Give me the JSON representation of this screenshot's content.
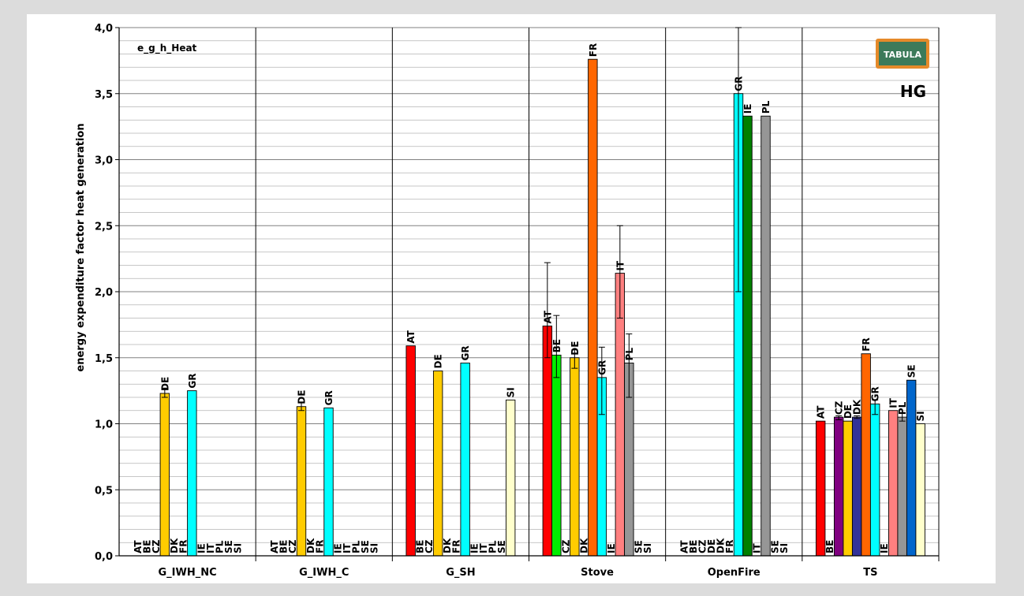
{
  "chart_data": {
    "type": "bar",
    "ylabel": "energy expenditure factor heat generation",
    "ylim": [
      0,
      4
    ],
    "yticks": [
      "0,0",
      "0,5",
      "1,0",
      "1,5",
      "2,0",
      "2,5",
      "3,0",
      "3,5",
      "4,0"
    ],
    "grid": true,
    "annotation": "e_g_h_Heat",
    "badge": "HG",
    "logo": "TABULA",
    "countries": [
      "AT",
      "BE",
      "CZ",
      "DE",
      "DK",
      "FR",
      "IE",
      "IT",
      "GR",
      "PL",
      "SE",
      "SI"
    ],
    "groups": [
      {
        "name": "G_IWH_NC",
        "bars": [
          {
            "label": "AT",
            "value": 0
          },
          {
            "label": "BE",
            "value": 0
          },
          {
            "label": "CZ",
            "value": 0
          },
          {
            "label": "DE",
            "value": 1.23,
            "err_low": 1.2,
            "err_high": 1.27
          },
          {
            "label": "DK",
            "value": 0
          },
          {
            "label": "FR",
            "value": 0
          },
          {
            "label": "GR",
            "value": 1.25
          },
          {
            "label": "IE",
            "value": 0
          },
          {
            "label": "IT",
            "value": 0
          },
          {
            "label": "PL",
            "value": 0
          },
          {
            "label": "SE",
            "value": 0
          },
          {
            "label": "SI",
            "value": 0
          }
        ]
      },
      {
        "name": "G_IWH_C",
        "bars": [
          {
            "label": "AT",
            "value": 0
          },
          {
            "label": "BE",
            "value": 0
          },
          {
            "label": "CZ",
            "value": 0
          },
          {
            "label": "DE",
            "value": 1.13,
            "err_low": 1.1,
            "err_high": 1.16
          },
          {
            "label": "DK",
            "value": 0
          },
          {
            "label": "FR",
            "value": 0
          },
          {
            "label": "GR",
            "value": 1.12
          },
          {
            "label": "IE",
            "value": 0
          },
          {
            "label": "IT",
            "value": 0
          },
          {
            "label": "PL",
            "value": 0
          },
          {
            "label": "SE",
            "value": 0
          },
          {
            "label": "SI",
            "value": 0
          }
        ]
      },
      {
        "name": "G_SH",
        "bars": [
          {
            "label": "AT",
            "value": 1.59
          },
          {
            "label": "BE",
            "value": 0
          },
          {
            "label": "CZ",
            "value": 0
          },
          {
            "label": "DE",
            "value": 1.4
          },
          {
            "label": "DK",
            "value": 0
          },
          {
            "label": "FR",
            "value": 0
          },
          {
            "label": "GR",
            "value": 1.46
          },
          {
            "label": "IE",
            "value": 0
          },
          {
            "label": "IT",
            "value": 0
          },
          {
            "label": "PL",
            "value": 0
          },
          {
            "label": "SE",
            "value": 0
          },
          {
            "label": "SI",
            "value": 1.18
          }
        ]
      },
      {
        "name": "Stove",
        "bars": [
          {
            "label": "AT",
            "value": 1.74,
            "err_low": 1.5,
            "err_high": 2.22
          },
          {
            "label": "BE",
            "value": 1.52,
            "err_low": 1.35,
            "err_high": 1.82
          },
          {
            "label": "CZ",
            "value": 0
          },
          {
            "label": "DE",
            "value": 1.5,
            "err_low": 1.42,
            "err_high": 1.56
          },
          {
            "label": "DK",
            "value": 0
          },
          {
            "label": "FR",
            "value": 3.76
          },
          {
            "label": "GR",
            "value": 1.35,
            "err_low": 1.07,
            "err_high": 1.58
          },
          {
            "label": "IE",
            "value": 0
          },
          {
            "label": "IT",
            "value": 2.14,
            "err_low": 1.8,
            "err_high": 2.5
          },
          {
            "label": "PL",
            "value": 1.46,
            "err_low": 1.2,
            "err_high": 1.68
          },
          {
            "label": "SE",
            "value": 0
          },
          {
            "label": "SI",
            "value": 0
          }
        ]
      },
      {
        "name": "OpenFire",
        "bars": [
          {
            "label": "AT",
            "value": 0
          },
          {
            "label": "BE",
            "value": 0
          },
          {
            "label": "CZ",
            "value": 0
          },
          {
            "label": "DE",
            "value": 0
          },
          {
            "label": "DK",
            "value": 0
          },
          {
            "label": "FR",
            "value": 0
          },
          {
            "label": "GR",
            "value": 3.5,
            "err_low": 2.0,
            "err_high": 4.0
          },
          {
            "label": "IE",
            "value": 3.33
          },
          {
            "label": "IT",
            "value": 0
          },
          {
            "label": "PL",
            "value": 3.33
          },
          {
            "label": "SE",
            "value": 0
          },
          {
            "label": "SI",
            "value": 0
          }
        ]
      },
      {
        "name": "TS",
        "bars": [
          {
            "label": "AT",
            "value": 1.02
          },
          {
            "label": "BE",
            "value": 0
          },
          {
            "label": "CZ",
            "value": 1.05,
            "err_low": 1.03,
            "err_high": 1.06
          },
          {
            "label": "DE",
            "value": 1.02
          },
          {
            "label": "DK",
            "value": 1.05,
            "err_low": 1.04,
            "err_high": 1.06
          },
          {
            "label": "FR",
            "value": 1.53
          },
          {
            "label": "GR",
            "value": 1.15,
            "err_low": 1.07,
            "err_high": 1.18
          },
          {
            "label": "IE",
            "value": 0
          },
          {
            "label": "IT",
            "value": 1.1
          },
          {
            "label": "PL",
            "value": 1.05,
            "err_low": 1.02,
            "err_high": 1.08
          },
          {
            "label": "SE",
            "value": 1.33
          },
          {
            "label": "SI",
            "value": 1.0
          }
        ]
      }
    ],
    "colors": {
      "AT": "#ff0000",
      "BE": "#00ee00",
      "CZ": "#800080",
      "DE": "#ffcc00",
      "DK": "#333399",
      "FR": "#ff6600",
      "GR": "#00ffff",
      "IE": "#008000",
      "IT": "#ff8080",
      "PL": "#969696",
      "SE": "#0066cc",
      "SI": "#ffffcc"
    }
  }
}
